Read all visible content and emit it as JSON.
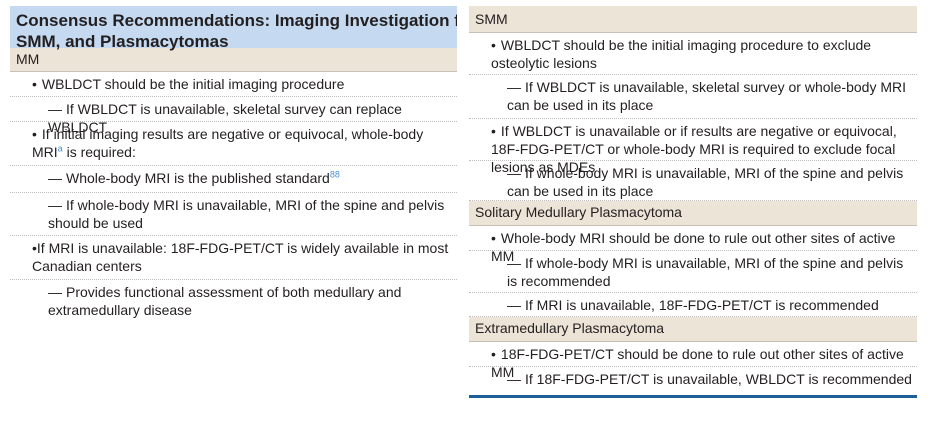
{
  "left": {
    "title_line1": "Consensus Recommendations: Imaging Investigation for MM,",
    "title_line2": "SMM, and Plasmacytomas",
    "section": "MM",
    "items": [
      {
        "text": "WBLDCT should be the initial imaging procedure"
      },
      {
        "text": "If WBLDCT is unavailable, skeletal survey can replace WBLDCT"
      },
      {
        "text_a": "If initial imaging results are negative or equivocal, whole-body MRI",
        "sup": "a",
        "text_b": " is required:"
      },
      {
        "text": "Whole-body MRI is the published standard",
        "sup": "88"
      },
      {
        "text": "If whole-body MRI is unavailable, MRI of the spine and pelvis should be used"
      },
      {
        "text": "If MRI is unavailable: 18F-FDG-PET/CT is widely available in most Canadian centers"
      },
      {
        "text": "Provides functional assessment of both medullary and extramedullary disease"
      }
    ]
  },
  "right": {
    "sections": [
      {
        "name": "SMM",
        "items": [
          {
            "text": "WBLDCT should be the initial imaging procedure to exclude osteolytic lesions"
          },
          {
            "text": "If WBLDCT is unavailable, skeletal survey or whole-body MRI can be used in its place"
          },
          {
            "text": "If WBLDCT is unavailable or if results are negative or equivocal, 18F-FDG-PET/CT or whole-body MRI is required to exclude focal lesions as MDEs"
          },
          {
            "text": "If whole-body MRI is unavailable, MRI of the spine and pelvis can be used in its place"
          }
        ]
      },
      {
        "name": "Solitary Medullary Plasmacytoma",
        "items": [
          {
            "text": "Whole-body MRI should be done to rule out other sites of active MM"
          },
          {
            "text": "If whole-body MRI is unavailable, MRI of the spine and pelvis is recommended"
          },
          {
            "text": "If MRI is unavailable, 18F-FDG-PET/CT is recommended"
          }
        ]
      },
      {
        "name": "Extramedullary Plasmacytoma",
        "items": [
          {
            "text": "18F-FDG-PET/CT should be done to rule out other sites of active MM"
          },
          {
            "text": "If 18F-FDG-PET/CT is unavailable, WBLDCT is recommended"
          }
        ]
      }
    ]
  },
  "glyphs": {
    "bullet": "•",
    "dash": "—"
  }
}
